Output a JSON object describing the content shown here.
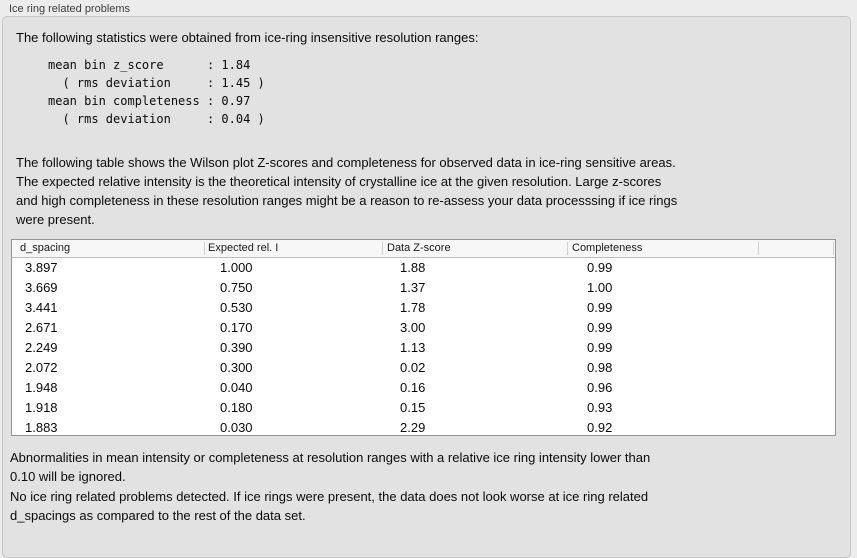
{
  "panel": {
    "title": "Ice ring related problems"
  },
  "intro": {
    "text": "The following statistics were obtained from ice-ring insensitive resolution ranges:"
  },
  "statistics": {
    "mean_bin_z_score": "1.84",
    "z_score_rms_deviation": "1.45",
    "mean_bin_completeness": "0.97",
    "completeness_rms_deviation": "0.04",
    "block_text": "mean bin z_score      : 1.84\n  ( rms deviation     : 1.45 )\nmean bin completeness : 0.97\n  ( rms deviation     : 0.04 )"
  },
  "description": {
    "text": "The following table shows the Wilson plot Z-scores and completeness for observed data in ice-ring sensitive areas.\nThe expected relative intensity is the theoretical intensity of crystalline ice at the given resolution. Large z-scores\nand high completeness in these resolution ranges might be a reason to re-assess your data processsing if ice rings\nwere present."
  },
  "table": {
    "columns": [
      "d_spacing",
      "Expected rel. I",
      "Data Z-score",
      "Completeness"
    ],
    "rows": [
      [
        "3.897",
        "1.000",
        "1.88",
        "0.99"
      ],
      [
        "3.669",
        "0.750",
        "1.37",
        "1.00"
      ],
      [
        "3.441",
        "0.530",
        "1.78",
        "0.99"
      ],
      [
        "2.671",
        "0.170",
        "3.00",
        "0.99"
      ],
      [
        "2.249",
        "0.390",
        "1.13",
        "0.99"
      ],
      [
        "2.072",
        "0.300",
        "0.02",
        "0.98"
      ],
      [
        "1.948",
        "0.040",
        "0.16",
        "0.96"
      ],
      [
        "1.918",
        "0.180",
        "0.15",
        "0.93"
      ],
      [
        "1.883",
        "0.030",
        "2.29",
        "0.92"
      ]
    ]
  },
  "notes": {
    "ignore_note": "Abnormalities in mean intensity or completeness at resolution ranges with a relative ice ring intensity lower than\n0.10 will be ignored.",
    "conclusion": "No ice ring related problems detected. If ice rings were present, the data does not look worse at ice ring related\nd_spacings as compared to the rest of the data set."
  }
}
